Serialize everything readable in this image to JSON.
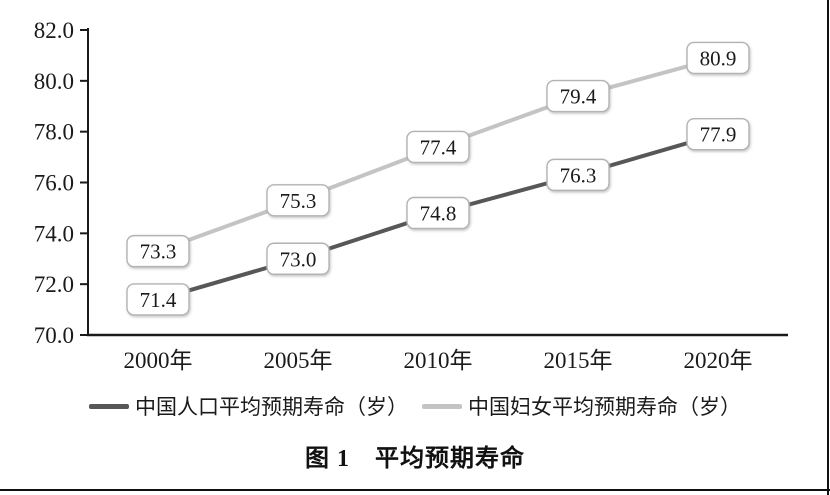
{
  "figure": {
    "caption": "图 1　平均预期寿命"
  },
  "chart_data": {
    "type": "line",
    "categories": [
      "2000年",
      "2005年",
      "2010年",
      "2015年",
      "2020年"
    ],
    "series": [
      {
        "name": "中国人口平均预期寿命（岁）",
        "values": [
          71.4,
          73.0,
          74.8,
          76.3,
          77.9
        ],
        "color": "#575757"
      },
      {
        "name": "中国妇女平均预期寿命（岁）",
        "values": [
          73.3,
          75.3,
          77.4,
          79.4,
          80.9
        ],
        "color": "#c4c4c4"
      }
    ],
    "ylim": [
      70.0,
      82.0
    ],
    "ytick_step": 2.0,
    "ytick_labels": [
      "70.0",
      "72.0",
      "74.0",
      "76.0",
      "78.0",
      "80.0",
      "82.0"
    ],
    "grid": false,
    "legend_position": "bottom",
    "data_labels": true,
    "data_label_box": {
      "fill": "#ffffff",
      "border": "#b3b3b3",
      "text_color": "#1a1a1a"
    },
    "axis_color": "#1a1a1a"
  }
}
